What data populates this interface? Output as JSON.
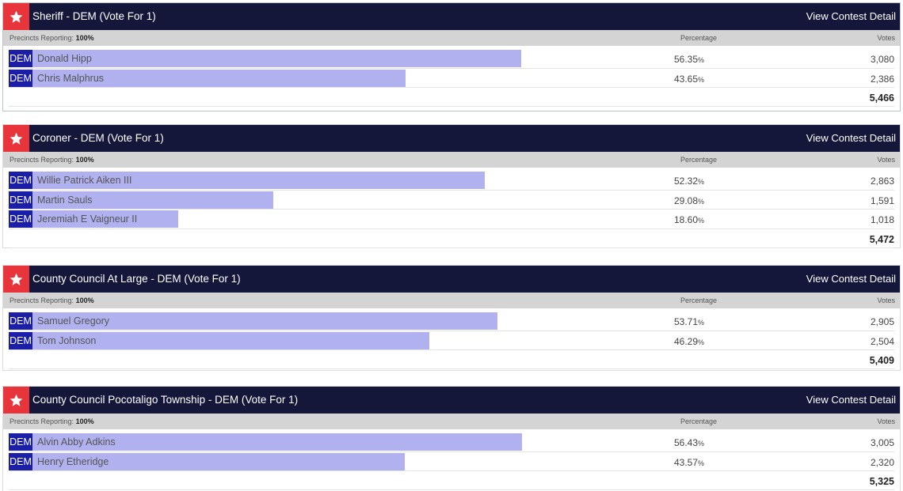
{
  "colors": {
    "header_bg": "#14173a",
    "star_bg": "#e8353b",
    "party_bg": "#1b1fa8",
    "bar": "#b1b1f0"
  },
  "labels": {
    "precincts_label": "Precincts Reporting:",
    "percentage": "Percentage",
    "votes": "Votes",
    "view_detail": "View Contest Detail"
  },
  "contests": [
    {
      "title": "Sheriff - DEM (Vote For 1)",
      "precincts": "100%",
      "total": "5,466",
      "candidates": [
        {
          "party": "DEM",
          "name": "Donald Hipp",
          "pct": "56.35",
          "pct_sign": "%",
          "share": 0.5635,
          "votes": "3,080"
        },
        {
          "party": "DEM",
          "name": "Chris Malphrus",
          "pct": "43.65",
          "pct_sign": "%",
          "share": 0.4365,
          "votes": "2,386"
        }
      ]
    },
    {
      "title": "Coroner - DEM (Vote For 1)",
      "precincts": "100%",
      "total": "5,472",
      "candidates": [
        {
          "party": "DEM",
          "name": "Willie Patrick Aiken III",
          "pct": "52.32",
          "pct_sign": "%",
          "share": 0.5232,
          "votes": "2,863"
        },
        {
          "party": "DEM",
          "name": "Martin Sauls",
          "pct": "29.08",
          "pct_sign": "%",
          "share": 0.2908,
          "votes": "1,591"
        },
        {
          "party": "DEM",
          "name": "Jeremiah E Vaigneur II",
          "pct": "18.60",
          "pct_sign": "%",
          "share": 0.186,
          "votes": "1,018"
        }
      ]
    },
    {
      "title": "County Council At Large - DEM (Vote For 1)",
      "precincts": "100%",
      "total": "5,409",
      "candidates": [
        {
          "party": "DEM",
          "name": "Samuel Gregory",
          "pct": "53.71",
          "pct_sign": "%",
          "share": 0.5371,
          "votes": "2,905"
        },
        {
          "party": "DEM",
          "name": "Tom Johnson",
          "pct": "46.29",
          "pct_sign": "%",
          "share": 0.4629,
          "votes": "2,504"
        }
      ]
    },
    {
      "title": "County Council Pocotaligo Township - DEM (Vote For 1)",
      "precincts": "100%",
      "total": "5,325",
      "candidates": [
        {
          "party": "DEM",
          "name": "Alvin Abby Adkins",
          "pct": "56.43",
          "pct_sign": "%",
          "share": 0.5643,
          "votes": "3,005"
        },
        {
          "party": "DEM",
          "name": "Henry Etheridge",
          "pct": "43.57",
          "pct_sign": "%",
          "share": 0.4357,
          "votes": "2,320"
        }
      ]
    }
  ]
}
